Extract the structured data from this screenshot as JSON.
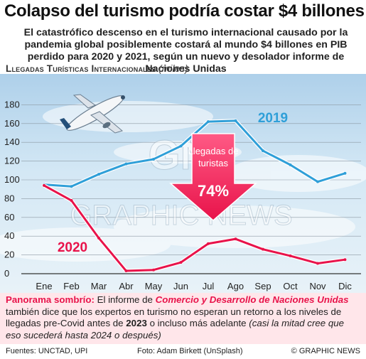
{
  "header": {
    "title": "Colapso del turismo podría costar $4 billones",
    "subtitle": "El catastrófico descenso en el turismo internacional causado por la pandemia global posiblemente costará al mundo $4 billones en PIB perdido para 2020 y 2021, según un nuevo y desolador informe de Naciones Unidas"
  },
  "chart_data": {
    "type": "line",
    "title": "Llegadas Turísticas Internacionales",
    "unit": "(miles)",
    "categories": [
      "Ene",
      "Feb",
      "Mar",
      "Abr",
      "May",
      "Jun",
      "Jul",
      "Ago",
      "Sep",
      "Oct",
      "Nov",
      "Dic"
    ],
    "series": [
      {
        "name": "2019",
        "color": "#2f9fd8",
        "values": [
          95,
          93,
          106,
          117,
          122,
          136,
          162,
          163,
          131,
          116,
          98,
          107
        ]
      },
      {
        "name": "2020",
        "color": "#e8134a",
        "values": [
          94,
          78,
          38,
          3,
          4,
          12,
          32,
          37,
          26,
          19,
          11,
          15
        ]
      }
    ],
    "ylim": [
      0,
      180
    ],
    "yticks": [
      0,
      20,
      40,
      60,
      80,
      100,
      120,
      140,
      160,
      180
    ],
    "grid": true,
    "annotation": {
      "label": "Llegadas de turistas",
      "value": "74%",
      "direction": "down",
      "color": "#e8134a"
    }
  },
  "watermark": {
    "monogram": "GN",
    "text": "GRAPHIC NEWS"
  },
  "footnote": {
    "lead": "Panorama sombrío:",
    "t1": " El informe de ",
    "org": "Comercio y Desarrollo de Naciones Unidas",
    "t2": " también dice que los expertos en turismo no esperan un retorno a los niveles de llegadas pre-Covid antes de ",
    "year": "2023",
    "t3": " o incluso más adelante ",
    "paren": "(casi la mitad cree que eso sucederá hasta 2024 o después)"
  },
  "credits": {
    "source": "Fuentes: UNCTAD, UPI",
    "photo": "Foto: Adam Birkett (UnSplash)",
    "copyright": "© GRAPHIC NEWS"
  }
}
